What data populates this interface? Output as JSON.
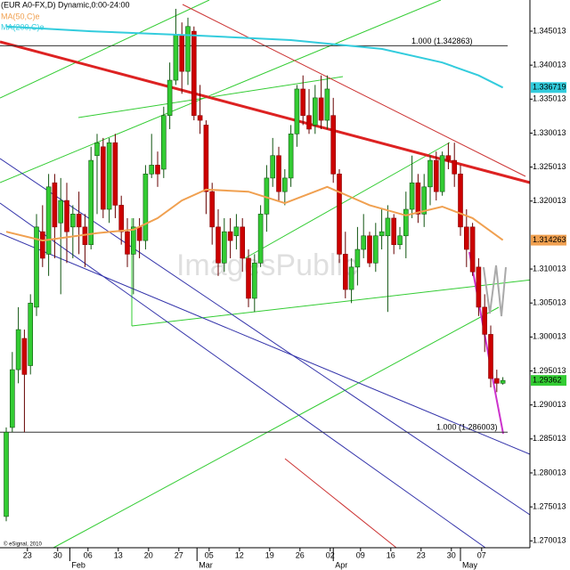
{
  "chart_data": {
    "type": "candlestick",
    "title": "(EUR A0-FX,D) Dynamic,0:00-24:00",
    "footer": "© eSignal, 2010",
    "watermark": "ImagesPublic",
    "up_color": "#33cc33",
    "down_color": "#cc0000",
    "open": [
      1.2736,
      1.2867,
      1.2952,
      1.2998,
      1.2958,
      1.3044,
      1.3155,
      1.3122,
      1.3227,
      1.3168,
      1.3201,
      1.3162,
      1.3181,
      1.3162,
      1.3136,
      1.3267,
      1.328,
      1.3188,
      1.3286,
      1.3194,
      1.3155,
      1.3122,
      1.3162,
      1.3142,
      1.324,
      1.3253,
      1.3247,
      1.3326,
      1.3378,
      1.3444,
      1.3391,
      1.345,
      1.3326,
      1.3312,
      1.3214,
      1.3162,
      1.3109,
      1.3155,
      1.3149,
      1.3162,
      1.3116,
      1.3057,
      1.3109,
      1.3181,
      1.3234,
      1.3267,
      1.3214,
      1.3234,
      1.3299,
      1.3365,
      1.3326,
      1.3312,
      1.3352,
      1.3319,
      1.3326,
      1.324,
      1.3122,
      1.307,
      1.3103,
      1.3129,
      1.3149,
      1.3109,
      1.3149,
      1.3149,
      1.3175,
      1.3136,
      1.3149,
      1.3188,
      1.3227,
      1.3181,
      1.3221,
      1.326,
      1.3214,
      1.3267,
      1.326,
      1.324,
      1.3162,
      1.3162,
      1.3103,
      1.3044,
      1.3004,
      1.2939,
      1.2932
    ],
    "high": [
      1.2867,
      1.2978,
      1.3044,
      1.3011,
      1.3063,
      1.3181,
      1.3194,
      1.324,
      1.324,
      1.3234,
      1.3227,
      1.3194,
      1.3214,
      1.3181,
      1.328,
      1.3299,
      1.3293,
      1.3293,
      1.3299,
      1.3208,
      1.3175,
      1.3175,
      1.3175,
      1.3253,
      1.3299,
      1.3273,
      1.3339,
      1.3404,
      1.3483,
      1.3463,
      1.347,
      1.3457,
      1.3371,
      1.3319,
      1.3227,
      1.3188,
      1.3175,
      1.3175,
      1.3181,
      1.3175,
      1.3129,
      1.3122,
      1.3194,
      1.3253,
      1.3293,
      1.328,
      1.3247,
      1.3312,
      1.3371,
      1.3385,
      1.3365,
      1.3371,
      1.3385,
      1.3385,
      1.3352,
      1.3247,
      1.3155,
      1.3116,
      1.3162,
      1.3181,
      1.3155,
      1.3168,
      1.3188,
      1.3194,
      1.3181,
      1.3162,
      1.3214,
      1.3267,
      1.324,
      1.324,
      1.3267,
      1.3273,
      1.3273,
      1.3286,
      1.3286,
      1.3253,
      1.3188,
      1.3168,
      1.3116,
      1.3063,
      1.3017,
      1.2952,
      1.2941
    ],
    "low": [
      1.2729,
      1.286,
      1.2932,
      1.286,
      1.2945,
      1.3031,
      1.3103,
      1.309,
      1.3116,
      1.3063,
      1.3109,
      1.3116,
      1.3122,
      1.3103,
      1.3129,
      1.3181,
      1.3175,
      1.3168,
      1.3175,
      1.3136,
      1.3103,
      1.3063,
      1.3116,
      1.3129,
      1.3234,
      1.3221,
      1.3234,
      1.3306,
      1.3371,
      1.3358,
      1.3371,
      1.3319,
      1.3299,
      1.3181,
      1.3136,
      1.309,
      1.3096,
      1.3116,
      1.3129,
      1.3096,
      1.3044,
      1.3037,
      1.3103,
      1.3155,
      1.3221,
      1.3201,
      1.3194,
      1.3221,
      1.328,
      1.3312,
      1.3299,
      1.3299,
      1.3306,
      1.3306,
      1.3227,
      1.3109,
      1.3057,
      1.305,
      1.3076,
      1.3116,
      1.3103,
      1.3096,
      1.3129,
      1.3037,
      1.3122,
      1.3129,
      1.3116,
      1.3175,
      1.3168,
      1.3162,
      1.3194,
      1.3201,
      1.3208,
      1.3247,
      1.3221,
      1.3149,
      1.3103,
      1.309,
      1.3031,
      1.2978,
      1.2926,
      1.2919,
      1.293
    ],
    "close": [
      1.286,
      1.2952,
      1.3011,
      1.2945,
      1.305,
      1.3162,
      1.3116,
      1.3221,
      1.3162,
      1.3201,
      1.3155,
      1.3181,
      1.3162,
      1.3136,
      1.326,
      1.3286,
      1.3188,
      1.3286,
      1.3194,
      1.3155,
      1.3122,
      1.3162,
      1.3142,
      1.324,
      1.3253,
      1.324,
      1.3326,
      1.3378,
      1.3444,
      1.3391,
      1.3457,
      1.3326,
      1.3319,
      1.3214,
      1.3162,
      1.3109,
      1.3155,
      1.3142,
      1.3162,
      1.3116,
      1.3057,
      1.3109,
      1.3181,
      1.3234,
      1.3267,
      1.3214,
      1.3234,
      1.3299,
      1.3365,
      1.3326,
      1.3306,
      1.3352,
      1.3319,
      1.3365,
      1.324,
      1.3122,
      1.307,
      1.3103,
      1.3129,
      1.3149,
      1.3109,
      1.3149,
      1.3155,
      1.3175,
      1.3136,
      1.3149,
      1.3188,
      1.3227,
      1.3181,
      1.3221,
      1.326,
      1.3214,
      1.3267,
      1.326,
      1.324,
      1.3162,
      1.3129,
      1.3096,
      1.3044,
      1.3004,
      1.2939,
      1.2932,
      1.29362
    ],
    "lines": [
      {
        "name": "MA(50,C)e",
        "color": "#f0a050",
        "x": [
          0,
          6,
          15,
          21,
          25,
          29,
          33,
          40,
          46,
          53,
          60,
          66,
          72,
          77,
          82
        ],
        "values": [
          1.3155,
          1.3142,
          1.3153,
          1.3158,
          1.3175,
          1.3201,
          1.3217,
          1.3214,
          1.3197,
          1.3221,
          1.3194,
          1.3179,
          1.3192,
          1.3175,
          1.314263
        ]
      },
      {
        "name": "MA(200,C)e",
        "color": "#33ccdd",
        "x": [
          0,
          14,
          31,
          47,
          62,
          72,
          78,
          82
        ],
        "values": [
          1.3457,
          1.345,
          1.3444,
          1.3437,
          1.3424,
          1.3404,
          1.3385,
          1.336719
        ]
      }
    ],
    "levels": [
      {
        "value": 1.342863,
        "label": "1.000 (1.342863)"
      },
      {
        "value": 1.286003,
        "label": "1.000 (1.286003)"
      }
    ],
    "xlim": [
      -1.03,
      86.47
    ],
    "ylim": [
      1.269,
      1.3496
    ],
    "yticks": [
      1.345013,
      1.340013,
      1.335013,
      1.330013,
      1.325013,
      1.320013,
      1.310013,
      1.305013,
      1.300013,
      1.295013,
      1.290013,
      1.285013,
      1.280013,
      1.275013,
      1.270013
    ],
    "xticks": [
      {
        "value": 3.5,
        "label": "23"
      },
      {
        "value": 8.5,
        "label": "30"
      },
      {
        "value": 13.5,
        "label": "06"
      },
      {
        "value": 18.5,
        "label": "13"
      },
      {
        "value": 23.5,
        "label": "20"
      },
      {
        "value": 28.5,
        "label": "27"
      },
      {
        "value": 33.5,
        "label": "05"
      },
      {
        "value": 38.5,
        "label": "12"
      },
      {
        "value": 43.5,
        "label": "19"
      },
      {
        "value": 48.5,
        "label": "26"
      },
      {
        "value": 53.5,
        "label": "02"
      },
      {
        "value": 58.5,
        "label": "09"
      },
      {
        "value": 63.5,
        "label": "16"
      },
      {
        "value": 68.5,
        "label": "23"
      },
      {
        "value": 73.5,
        "label": "30"
      },
      {
        "value": 78.5,
        "label": "07"
      }
    ],
    "month_ticks": [
      {
        "value": 10.5,
        "label": "Feb"
      },
      {
        "value": 31.5,
        "label": "Mar"
      },
      {
        "value": 54,
        "label": "Apr"
      },
      {
        "value": 75,
        "label": "May"
      }
    ]
  }
}
